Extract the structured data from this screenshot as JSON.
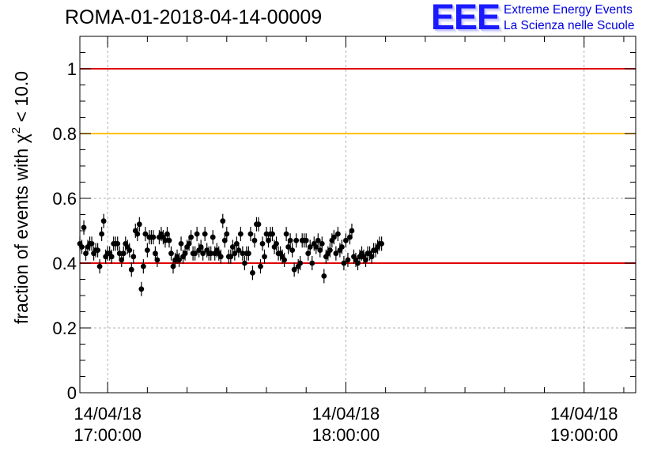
{
  "page": {
    "title": "ROMA-01-2018-04-14-00009"
  },
  "logo": {
    "letters": "EEE",
    "line1": "Extreme Energy Events",
    "line2": "La Scienza nelle Scuole"
  },
  "colors": {
    "data": "#000000",
    "upper_ref": "#e00000",
    "warning_ref": "#ffc000",
    "lower_ref": "#e00000",
    "grid": "#b0b0b0",
    "logo": "#1a1aff"
  },
  "chart_data": {
    "type": "scatter",
    "title": "ROMA-01-2018-04-14-00009",
    "xlabel": "",
    "ylabel_main": "fraction of events with χ",
    "ylabel_sup": "2",
    "ylabel_tail": " < 10.0",
    "x_unit": "time",
    "x_ticks": [
      {
        "line1": "14/04/18",
        "line2": "17:00:00",
        "t": "2018-04-14T17:00:00"
      },
      {
        "line1": "14/04/18",
        "line2": "18:00:00",
        "t": "2018-04-14T18:00:00"
      },
      {
        "line1": "14/04/18",
        "line2": "19:00:00",
        "t": "2018-04-14T19:00:00"
      }
    ],
    "xlim": [
      "2018-04-14T16:53:00",
      "2018-04-14T19:13:00"
    ],
    "ylim": [
      0,
      1.1
    ],
    "y_ticks": [
      0,
      0.2,
      0.4,
      0.6,
      0.8,
      1
    ],
    "y_tick_labels": [
      "0",
      "0.2",
      "0.4",
      "0.6",
      "0.8",
      "1"
    ],
    "grid": true,
    "reference_lines": [
      {
        "y": 1.0,
        "color": "#e00000"
      },
      {
        "y": 0.8,
        "color": "#ffc000"
      },
      {
        "y": 0.4,
        "color": "#e00000"
      }
    ],
    "series": [
      {
        "start": "2018-04-14T16:53:00",
        "step_seconds": 30,
        "error": 0.022,
        "y": [
          0.46,
          0.45,
          0.51,
          0.43,
          0.45,
          0.46,
          0.46,
          0.43,
          0.44,
          0.44,
          0.39,
          0.49,
          0.53,
          0.42,
          0.43,
          0.43,
          0.42,
          0.46,
          0.46,
          0.46,
          0.43,
          0.41,
          0.43,
          0.46,
          0.45,
          0.44,
          0.38,
          0.42,
          0.5,
          0.49,
          0.52,
          0.32,
          0.39,
          0.49,
          0.44,
          0.48,
          0.48,
          0.48,
          0.43,
          0.41,
          0.48,
          0.49,
          0.48,
          0.47,
          0.49,
          0.47,
          0.43,
          0.39,
          0.41,
          0.42,
          0.41,
          0.46,
          0.42,
          0.43,
          0.45,
          0.46,
          0.48,
          0.43,
          0.43,
          0.49,
          0.44,
          0.45,
          0.43,
          0.49,
          0.44,
          0.43,
          0.43,
          0.48,
          0.43,
          0.44,
          0.43,
          0.42,
          0.53,
          0.47,
          0.49,
          0.42,
          0.42,
          0.45,
          0.43,
          0.46,
          0.44,
          0.49,
          0.43,
          0.4,
          0.43,
          0.43,
          0.49,
          0.37,
          0.47,
          0.52,
          0.52,
          0.39,
          0.46,
          0.42,
          0.49,
          0.47,
          0.49,
          0.49,
          0.45,
          0.46,
          0.43,
          0.43,
          0.42,
          0.41,
          0.49,
          0.45,
          0.47,
          0.44,
          0.38,
          0.47,
          0.39,
          0.4,
          0.47,
          0.47,
          0.47,
          0.43,
          0.45,
          0.4,
          0.46,
          0.45,
          0.47,
          0.44,
          0.46,
          0.36,
          0.42,
          0.43,
          0.44,
          0.47,
          0.48,
          0.43,
          0.49,
          0.44,
          0.45,
          0.4,
          0.47,
          0.41,
          0.48,
          0.5,
          0.42,
          0.41,
          0.4,
          0.42,
          0.43,
          0.42,
          0.41,
          0.43,
          0.43,
          0.42,
          0.44,
          0.44,
          0.45,
          0.46,
          0.46
        ]
      }
    ]
  }
}
